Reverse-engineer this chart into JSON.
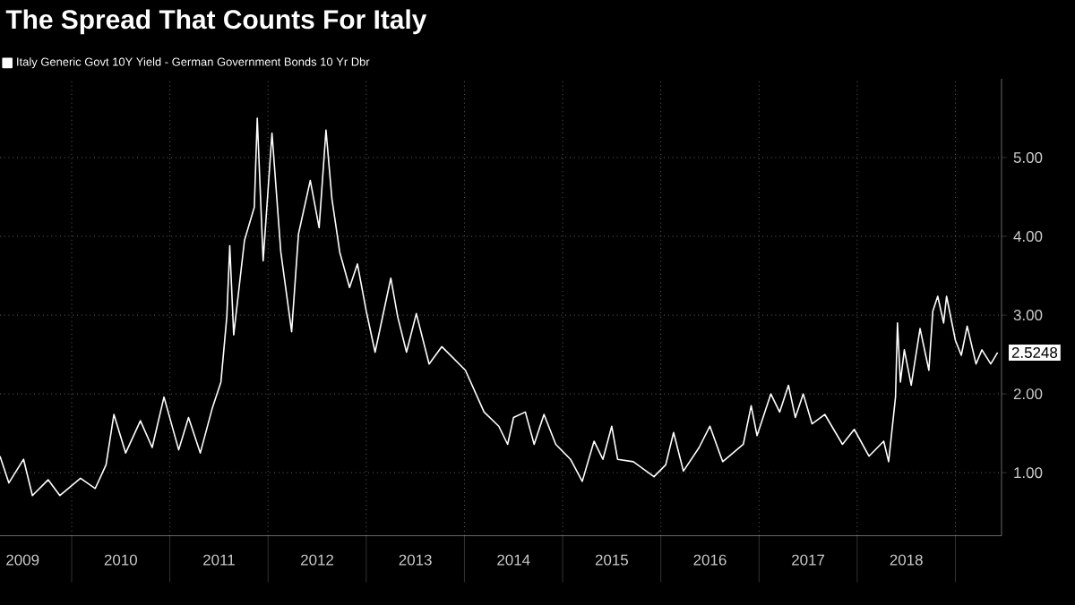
{
  "chart_data": {
    "type": "line",
    "title": "The Spread That Counts For Italy",
    "series": [
      {
        "name": "Italy Generic Govt 10Y Yield - German Government Bonds 10 Yr Dbr",
        "color": "#ffffff",
        "x": [
          2009.27,
          2009.36,
          2009.51,
          2009.6,
          2009.76,
          2009.88,
          2010.09,
          2010.24,
          2010.35,
          2010.43,
          2010.55,
          2010.7,
          2010.82,
          2010.94,
          2011.09,
          2011.19,
          2011.31,
          2011.43,
          2011.52,
          2011.58,
          2011.61,
          2011.65,
          2011.76,
          2011.86,
          2011.89,
          2011.95,
          2012.04,
          2012.13,
          2012.24,
          2012.31,
          2012.43,
          2012.52,
          2012.59,
          2012.65,
          2012.73,
          2012.83,
          2012.91,
          2013.0,
          2013.09,
          2013.25,
          2013.32,
          2013.41,
          2013.51,
          2013.64,
          2013.77,
          2014.01,
          2014.2,
          2014.35,
          2014.44,
          2014.5,
          2014.62,
          2014.71,
          2014.81,
          2014.93,
          2015.08,
          2015.2,
          2015.32,
          2015.41,
          2015.5,
          2015.56,
          2015.72,
          2015.93,
          2016.05,
          2016.13,
          2016.23,
          2016.39,
          2016.5,
          2016.63,
          2016.84,
          2016.92,
          2016.98,
          2017.12,
          2017.21,
          2017.3,
          2017.37,
          2017.45,
          2017.54,
          2017.67,
          2017.85,
          2017.97,
          2018.12,
          2018.27,
          2018.32,
          2018.39,
          2018.41,
          2018.44,
          2018.48,
          2018.55,
          2018.64,
          2018.73,
          2018.77,
          2018.82,
          2018.88,
          2018.91,
          2019.0,
          2019.06,
          2019.12,
          2019.21,
          2019.27,
          2019.36,
          2019.43
        ],
        "values": [
          1.21,
          0.87,
          1.17,
          0.71,
          0.91,
          0.71,
          0.93,
          0.8,
          1.1,
          1.74,
          1.25,
          1.66,
          1.32,
          1.96,
          1.29,
          1.7,
          1.25,
          1.81,
          2.15,
          2.98,
          3.88,
          2.75,
          3.95,
          4.37,
          5.5,
          3.69,
          5.31,
          3.8,
          2.79,
          4.03,
          4.71,
          4.11,
          5.35,
          4.48,
          3.8,
          3.35,
          3.65,
          3.05,
          2.53,
          3.47,
          2.98,
          2.53,
          3.02,
          2.38,
          2.6,
          2.3,
          1.77,
          1.59,
          1.36,
          1.7,
          1.77,
          1.36,
          1.74,
          1.36,
          1.17,
          0.89,
          1.4,
          1.17,
          1.59,
          1.17,
          1.14,
          0.95,
          1.1,
          1.51,
          1.02,
          1.32,
          1.59,
          1.14,
          1.36,
          1.85,
          1.47,
          2.0,
          1.77,
          2.11,
          1.7,
          2.0,
          1.62,
          1.74,
          1.36,
          1.55,
          1.21,
          1.4,
          1.14,
          1.96,
          2.9,
          2.15,
          2.56,
          2.11,
          2.83,
          2.3,
          3.05,
          3.24,
          2.9,
          3.24,
          2.68,
          2.49,
          2.86,
          2.38,
          2.56,
          2.38,
          2.5248
        ]
      }
    ],
    "xlim": [
      2009.27,
      2019.47
    ],
    "ylim": [
      0.2,
      6
    ],
    "xticks": [
      {
        "value": 2009.5,
        "label": "2009"
      },
      {
        "value": 2010,
        "label": null
      },
      {
        "value": 2010.5,
        "label": "2010"
      },
      {
        "value": 2011,
        "label": null
      },
      {
        "value": 2011.5,
        "label": "2011"
      },
      {
        "value": 2012,
        "label": null
      },
      {
        "value": 2012.5,
        "label": "2012"
      },
      {
        "value": 2013,
        "label": null
      },
      {
        "value": 2013.5,
        "label": "2013"
      },
      {
        "value": 2014,
        "label": null
      },
      {
        "value": 2014.5,
        "label": "2014"
      },
      {
        "value": 2015,
        "label": null
      },
      {
        "value": 2015.5,
        "label": "2015"
      },
      {
        "value": 2016,
        "label": null
      },
      {
        "value": 2016.5,
        "label": "2016"
      },
      {
        "value": 2017,
        "label": null
      },
      {
        "value": 2017.5,
        "label": "2017"
      },
      {
        "value": 2018,
        "label": null
      },
      {
        "value": 2018.5,
        "label": "2018"
      },
      {
        "value": 2019,
        "label": null
      }
    ],
    "yticks": [
      {
        "value": 1,
        "label": "1.00"
      },
      {
        "value": 2,
        "label": "2.00"
      },
      {
        "value": 3,
        "label": "3.00"
      },
      {
        "value": 4,
        "label": "4.00"
      },
      {
        "value": 5,
        "label": "5.00"
      }
    ],
    "annotations": [
      {
        "text": "2.5248",
        "x": 2019.43,
        "y": 2.5248
      }
    ],
    "grid": true,
    "legend": "top left",
    "marker": "none",
    "line_style": "solid"
  }
}
